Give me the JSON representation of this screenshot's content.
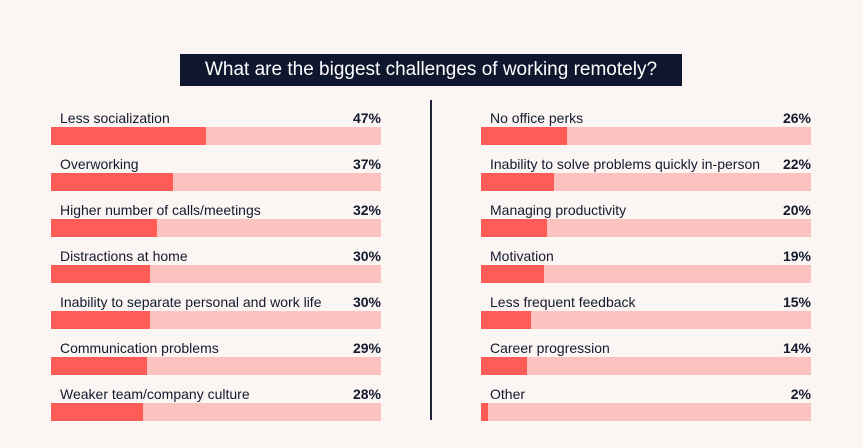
{
  "chart_data": {
    "type": "bar",
    "orientation": "horizontal",
    "title": "What are the biggest challenges of working remotely?",
    "xlabel": "",
    "ylabel": "",
    "unit": "%",
    "xlim": [
      0,
      100
    ],
    "categories": [
      "Less socialization",
      "Overworking",
      "Higher number of calls/meetings",
      "Distractions at home",
      "Inability to separate personal and work life",
      "Communication problems",
      "Weaker team/company culture",
      "No office perks",
      "Inability to solve problems quickly in-person",
      "Managing productivity",
      "Motivation",
      "Less frequent feedback",
      "Career progression",
      "Other"
    ],
    "values": [
      47,
      37,
      32,
      30,
      30,
      29,
      28,
      26,
      22,
      20,
      19,
      15,
      14,
      2
    ],
    "colors": {
      "fill": "#ff5c58",
      "track": "#fcc2c0",
      "title_bg": "#0f172e",
      "background": "#fbf5f3"
    }
  },
  "title": "What are the biggest challenges of working remotely?",
  "left": [
    {
      "label": "Less socialization",
      "value": 47,
      "value_text": "47%"
    },
    {
      "label": "Overworking",
      "value": 37,
      "value_text": "37%"
    },
    {
      "label": "Higher number of calls/meetings",
      "value": 32,
      "value_text": "32%"
    },
    {
      "label": "Distractions at home",
      "value": 30,
      "value_text": "30%"
    },
    {
      "label": "Inability to separate personal and work life",
      "value": 30,
      "value_text": "30%"
    },
    {
      "label": "Communication problems",
      "value": 29,
      "value_text": "29%"
    },
    {
      "label": "Weaker team/company culture",
      "value": 28,
      "value_text": "28%"
    }
  ],
  "right": [
    {
      "label": "No office perks",
      "value": 26,
      "value_text": "26%"
    },
    {
      "label": "Inability to solve problems quickly in-person",
      "value": 22,
      "value_text": "22%"
    },
    {
      "label": "Managing productivity",
      "value": 20,
      "value_text": "20%"
    },
    {
      "label": "Motivation",
      "value": 19,
      "value_text": "19%"
    },
    {
      "label": "Less frequent feedback",
      "value": 15,
      "value_text": "15%"
    },
    {
      "label": "Career progression",
      "value": 14,
      "value_text": "14%"
    },
    {
      "label": "Other",
      "value": 2,
      "value_text": "2%"
    }
  ]
}
